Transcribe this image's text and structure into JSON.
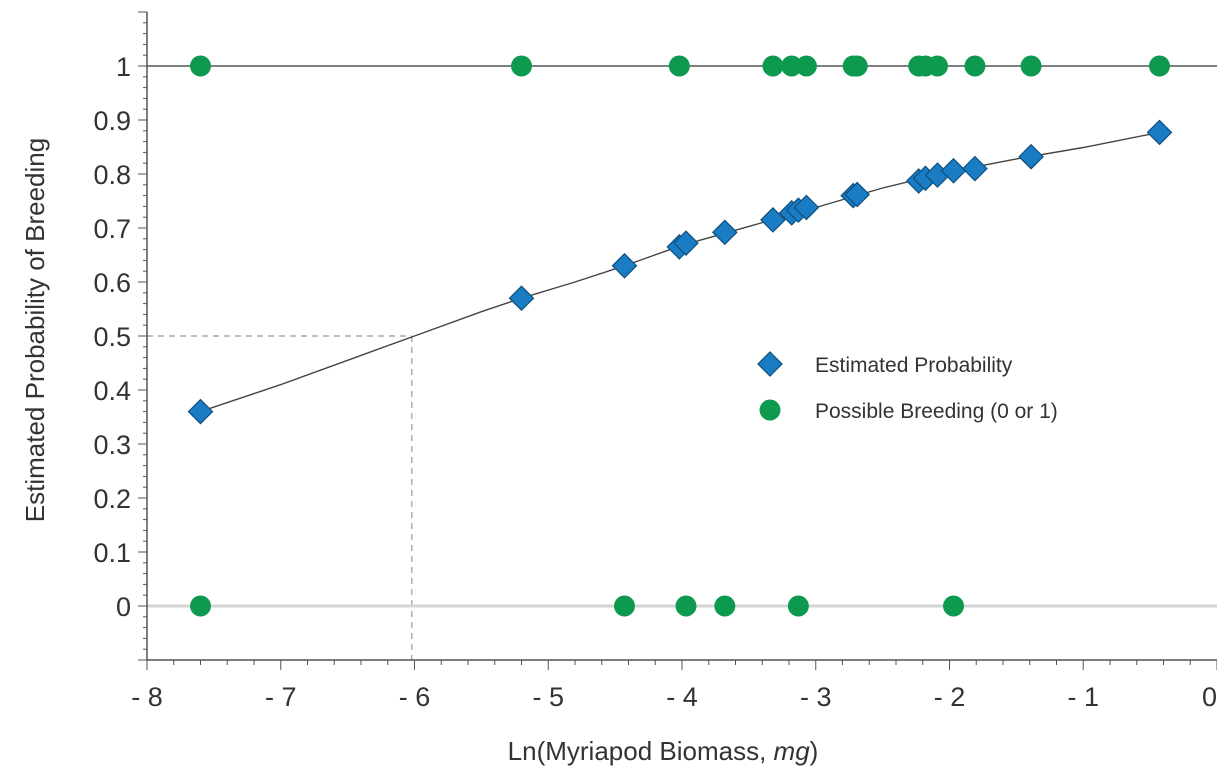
{
  "chart_data": {
    "type": "scatter",
    "xlabel": "Ln(Myriapod Biomass, mg)",
    "xlabel_main": "Ln(Myriapod Biomass, ",
    "xlabel_unit": "mg",
    "xlabel_close": ")",
    "ylabel": "Estimated Probability of Breeding",
    "xlim": [
      -8,
      0
    ],
    "ylim": [
      -0.1,
      1.1
    ],
    "x_ticks": [
      -8,
      -7,
      -6,
      -5,
      -4,
      -3,
      -2,
      -1,
      0
    ],
    "x_tick_labels": [
      "- 8",
      "- 7",
      "- 6",
      "- 5",
      "- 4",
      "- 3",
      "- 2",
      "- 1",
      "0"
    ],
    "y_ticks": [
      0,
      0.1,
      0.2,
      0.3,
      0.4,
      0.5,
      0.6,
      0.7,
      0.8,
      0.9,
      1
    ],
    "y_tick_labels": [
      "0",
      "0.1",
      "0.2",
      "0.3",
      "0.4",
      "0.5",
      "0.6",
      "0.7",
      "0.8",
      "0.9",
      "1"
    ],
    "grid": false,
    "legend_position": "right",
    "series": [
      {
        "name": "Estimated Probability",
        "marker": "diamond",
        "color": "#1a7dc4",
        "points": [
          [
            -7.6,
            0.36
          ],
          [
            -5.2,
            0.57
          ],
          [
            -4.43,
            0.63
          ],
          [
            -4.02,
            0.665
          ],
          [
            -3.97,
            0.672
          ],
          [
            -3.68,
            0.692
          ],
          [
            -3.32,
            0.715
          ],
          [
            -3.18,
            0.728
          ],
          [
            -3.13,
            0.733
          ],
          [
            -3.07,
            0.738
          ],
          [
            -2.72,
            0.76
          ],
          [
            -2.69,
            0.762
          ],
          [
            -2.23,
            0.787
          ],
          [
            -2.18,
            0.792
          ],
          [
            -2.09,
            0.798
          ],
          [
            -1.97,
            0.806
          ],
          [
            -1.81,
            0.81
          ],
          [
            -1.39,
            0.832
          ],
          [
            -0.43,
            0.877
          ]
        ]
      },
      {
        "name": "Possible Breeding (0 or 1)",
        "marker": "circle",
        "color": "#0e9a4e",
        "points": [
          [
            -7.6,
            1
          ],
          [
            -5.2,
            1
          ],
          [
            -4.02,
            1
          ],
          [
            -3.32,
            1
          ],
          [
            -3.18,
            1
          ],
          [
            -3.07,
            1
          ],
          [
            -2.72,
            1
          ],
          [
            -2.69,
            1
          ],
          [
            -2.23,
            1
          ],
          [
            -2.18,
            1
          ],
          [
            -2.09,
            1
          ],
          [
            -1.81,
            1
          ],
          [
            -1.39,
            1
          ],
          [
            -0.43,
            1
          ],
          [
            -7.6,
            0
          ],
          [
            -4.43,
            0
          ],
          [
            -3.97,
            0
          ],
          [
            -3.68,
            0
          ],
          [
            -3.13,
            0
          ],
          [
            -1.97,
            0
          ]
        ]
      }
    ],
    "fitted_curve": [
      [
        -7.6,
        0.36
      ],
      [
        -7.0,
        0.41
      ],
      [
        -6.5,
        0.455
      ],
      [
        -6.0,
        0.5
      ],
      [
        -5.5,
        0.545
      ],
      [
        -5.2,
        0.57
      ],
      [
        -4.8,
        0.6
      ],
      [
        -4.43,
        0.63
      ],
      [
        -4.0,
        0.668
      ],
      [
        -3.5,
        0.703
      ],
      [
        -3.0,
        0.738
      ],
      [
        -2.5,
        0.774
      ],
      [
        -2.0,
        0.804
      ],
      [
        -1.5,
        0.828
      ],
      [
        -1.0,
        0.849
      ],
      [
        -0.43,
        0.877
      ]
    ],
    "reference_lines": {
      "x": -6.02,
      "y": 0.5
    }
  }
}
